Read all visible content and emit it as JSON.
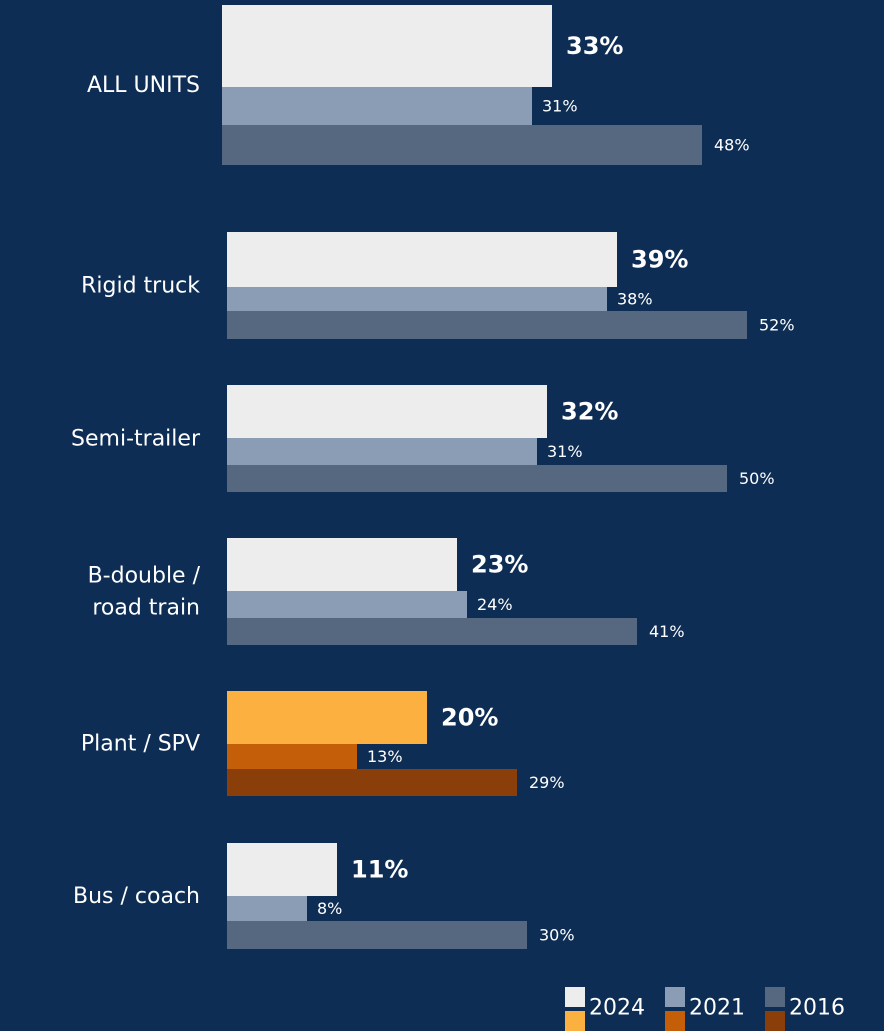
{
  "chart_data": {
    "type": "bar",
    "orientation": "horizontal",
    "categories": [
      [
        "ALL UNITS"
      ],
      [
        "Rigid truck"
      ],
      [
        "Semi-trailer"
      ],
      [
        "B-double /",
        "road train"
      ],
      [
        "Plant / SPV"
      ],
      [
        "Bus / coach"
      ]
    ],
    "series": [
      {
        "name": "2024",
        "values": [
          33,
          39,
          32,
          23,
          20,
          11
        ],
        "labels": [
          "33%",
          "39%",
          "32%",
          "23%",
          "20%",
          "11%"
        ]
      },
      {
        "name": "2021",
        "values": [
          31,
          38,
          31,
          24,
          13,
          8
        ],
        "labels": [
          "31%",
          "38%",
          "31%",
          "24%",
          "13%",
          "8%"
        ]
      },
      {
        "name": "2016",
        "values": [
          48,
          52,
          50,
          41,
          29,
          30
        ],
        "labels": [
          "48%",
          "52%",
          "50%",
          "41%",
          "29%",
          "30%"
        ]
      }
    ],
    "xlim": [
      0,
      60
    ],
    "legend": "bottom-right",
    "grid": false,
    "highlight_category_index": 4
  },
  "colors": {
    "background": "#0e2d54",
    "series": [
      "#ededed",
      "#8b9db4",
      "#55687f"
    ],
    "highlight_series": [
      "#fbb040",
      "#c45e08",
      "#8a3f0b"
    ],
    "text": "#ffffff"
  }
}
